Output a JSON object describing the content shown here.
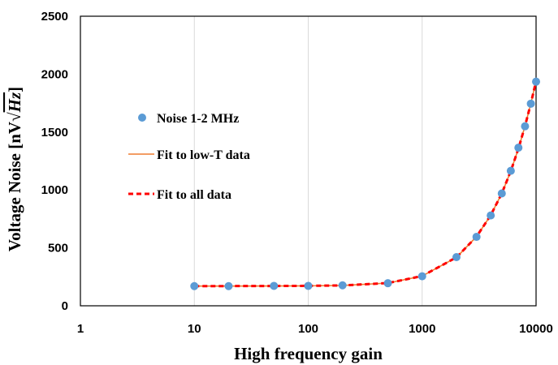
{
  "chart_data": {
    "type": "scatter",
    "xlabel": "High frequency gain",
    "ylabel": "Voltage Noise [nV√Hz]",
    "ylabel_parts": {
      "main": "Voltage Noise [nV",
      "root": "√",
      "hz": "Hz",
      "end": "]"
    },
    "xscale": "log",
    "xlim": [
      1,
      10000
    ],
    "ylim": [
      0,
      2500
    ],
    "xticks": [
      1,
      10,
      100,
      1000,
      10000
    ],
    "xtick_labels": [
      "1",
      "10",
      "100",
      "1000",
      "10000"
    ],
    "yticks": [
      0,
      500,
      1000,
      1500,
      2000,
      2500
    ],
    "ytick_labels": [
      "0",
      "500",
      "1000",
      "1500",
      "2000",
      "2500"
    ],
    "grid": {
      "x_major": true,
      "y_major": false
    },
    "legend": {
      "position": "upper-left"
    },
    "series": [
      {
        "name": "Noise 1-2 MHz",
        "kind": "markers",
        "color": "#5b9bd5",
        "x": [
          10,
          20,
          50,
          100,
          200,
          500,
          1000,
          2000,
          3000,
          4000,
          5000,
          6000,
          7000,
          8000,
          9000,
          10000
        ],
        "y": [
          170,
          170,
          172,
          172,
          177,
          195,
          255,
          420,
          595,
          780,
          970,
          1165,
          1365,
          1550,
          1745,
          1935
        ]
      },
      {
        "name": "Fit to low-T data",
        "kind": "line",
        "color": "#ed7d31",
        "x": [
          10,
          20,
          50,
          100,
          200,
          500,
          1000,
          2000,
          3000,
          4000,
          5000,
          6000,
          7000,
          8000,
          9000,
          10000
        ],
        "y": [
          170,
          170,
          171,
          172,
          176,
          196,
          257,
          418,
          597,
          782,
          970,
          1163,
          1358,
          1552,
          1748,
          1940
        ]
      },
      {
        "name": "Fit to all data",
        "kind": "dashed-line",
        "color": "#ff0000",
        "x": [
          10,
          20,
          50,
          100,
          200,
          500,
          1000,
          2000,
          3000,
          4000,
          5000,
          6000,
          7000,
          8000,
          9000,
          10000
        ],
        "y": [
          170,
          170,
          171,
          172,
          176,
          196,
          257,
          418,
          597,
          782,
          970,
          1163,
          1358,
          1552,
          1748,
          1940
        ]
      }
    ]
  }
}
